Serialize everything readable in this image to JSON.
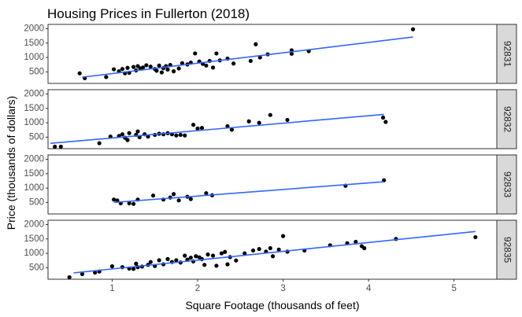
{
  "chart_data": {
    "type": "scatter",
    "title": "Housing Prices in Fullerton (2018)",
    "xlabel": "Square Footage (thousands of feet)",
    "ylabel": "Price (thousands of dollars)",
    "xlim": [
      0.25,
      5.5
    ],
    "ylim": [
      100,
      2150
    ],
    "x_ticks": [
      1,
      2,
      3,
      4,
      5
    ],
    "y_ticks": [
      500,
      1000,
      1500,
      2000
    ],
    "grid": false,
    "trend_line_color": "#3366ff",
    "point_color": "#000000",
    "strip_fill": "#d9d9d9",
    "facets": [
      {
        "label": "92831",
        "trend": {
          "x": [
            0.65,
            4.52
          ],
          "y": [
            315,
            1710
          ]
        },
        "points": [
          {
            "x": 0.62,
            "y": 450
          },
          {
            "x": 0.68,
            "y": 280
          },
          {
            "x": 0.93,
            "y": 320
          },
          {
            "x": 1.02,
            "y": 590
          },
          {
            "x": 1.08,
            "y": 520
          },
          {
            "x": 1.12,
            "y": 600
          },
          {
            "x": 1.15,
            "y": 450
          },
          {
            "x": 1.18,
            "y": 640
          },
          {
            "x": 1.2,
            "y": 470
          },
          {
            "x": 1.25,
            "y": 670
          },
          {
            "x": 1.28,
            "y": 550
          },
          {
            "x": 1.3,
            "y": 700
          },
          {
            "x": 1.33,
            "y": 620
          },
          {
            "x": 1.36,
            "y": 650
          },
          {
            "x": 1.4,
            "y": 730
          },
          {
            "x": 1.45,
            "y": 680
          },
          {
            "x": 1.5,
            "y": 600
          },
          {
            "x": 1.52,
            "y": 540
          },
          {
            "x": 1.55,
            "y": 720
          },
          {
            "x": 1.58,
            "y": 480
          },
          {
            "x": 1.6,
            "y": 630
          },
          {
            "x": 1.63,
            "y": 700
          },
          {
            "x": 1.65,
            "y": 580
          },
          {
            "x": 1.68,
            "y": 740
          },
          {
            "x": 1.72,
            "y": 520
          },
          {
            "x": 1.78,
            "y": 620
          },
          {
            "x": 1.82,
            "y": 800
          },
          {
            "x": 1.88,
            "y": 760
          },
          {
            "x": 1.92,
            "y": 820
          },
          {
            "x": 1.97,
            "y": 1140
          },
          {
            "x": 2.02,
            "y": 860
          },
          {
            "x": 2.06,
            "y": 780
          },
          {
            "x": 2.1,
            "y": 720
          },
          {
            "x": 2.14,
            "y": 880
          },
          {
            "x": 2.18,
            "y": 650
          },
          {
            "x": 2.22,
            "y": 1140
          },
          {
            "x": 2.26,
            "y": 900
          },
          {
            "x": 2.35,
            "y": 960
          },
          {
            "x": 2.42,
            "y": 790
          },
          {
            "x": 2.62,
            "y": 880
          },
          {
            "x": 2.68,
            "y": 1460
          },
          {
            "x": 2.73,
            "y": 1000
          },
          {
            "x": 2.82,
            "y": 1110
          },
          {
            "x": 3.1,
            "y": 1130
          },
          {
            "x": 3.1,
            "y": 1250
          },
          {
            "x": 3.3,
            "y": 1220
          },
          {
            "x": 4.52,
            "y": 1980
          }
        ]
      },
      {
        "label": "92832",
        "trend": {
          "x": [
            0.28,
            4.18
          ],
          "y": [
            285,
            1290
          ]
        },
        "points": [
          {
            "x": 0.33,
            "y": 170
          },
          {
            "x": 0.4,
            "y": 170
          },
          {
            "x": 0.85,
            "y": 290
          },
          {
            "x": 0.98,
            "y": 520
          },
          {
            "x": 1.08,
            "y": 540
          },
          {
            "x": 1.12,
            "y": 600
          },
          {
            "x": 1.15,
            "y": 480
          },
          {
            "x": 1.18,
            "y": 400
          },
          {
            "x": 1.2,
            "y": 640
          },
          {
            "x": 1.28,
            "y": 580
          },
          {
            "x": 1.3,
            "y": 700
          },
          {
            "x": 1.32,
            "y": 500
          },
          {
            "x": 1.38,
            "y": 600
          },
          {
            "x": 1.42,
            "y": 520
          },
          {
            "x": 1.5,
            "y": 580
          },
          {
            "x": 1.55,
            "y": 620
          },
          {
            "x": 1.6,
            "y": 600
          },
          {
            "x": 1.65,
            "y": 640
          },
          {
            "x": 1.7,
            "y": 600
          },
          {
            "x": 1.75,
            "y": 560
          },
          {
            "x": 1.8,
            "y": 580
          },
          {
            "x": 1.85,
            "y": 560
          },
          {
            "x": 1.95,
            "y": 930
          },
          {
            "x": 2.0,
            "y": 800
          },
          {
            "x": 2.05,
            "y": 820
          },
          {
            "x": 2.35,
            "y": 880
          },
          {
            "x": 2.4,
            "y": 760
          },
          {
            "x": 2.6,
            "y": 1050
          },
          {
            "x": 2.72,
            "y": 1000
          },
          {
            "x": 2.85,
            "y": 1270
          },
          {
            "x": 3.05,
            "y": 1100
          },
          {
            "x": 4.17,
            "y": 1180
          },
          {
            "x": 4.2,
            "y": 1030
          }
        ]
      },
      {
        "label": "92833",
        "trend": {
          "x": [
            1.02,
            4.18
          ],
          "y": [
            500,
            1220
          ]
        },
        "points": [
          {
            "x": 1.02,
            "y": 600
          },
          {
            "x": 1.06,
            "y": 570
          },
          {
            "x": 1.1,
            "y": 470
          },
          {
            "x": 1.2,
            "y": 470
          },
          {
            "x": 1.25,
            "y": 450
          },
          {
            "x": 1.3,
            "y": 600
          },
          {
            "x": 1.48,
            "y": 740
          },
          {
            "x": 1.6,
            "y": 600
          },
          {
            "x": 1.68,
            "y": 670
          },
          {
            "x": 1.72,
            "y": 790
          },
          {
            "x": 1.78,
            "y": 570
          },
          {
            "x": 1.88,
            "y": 700
          },
          {
            "x": 1.92,
            "y": 620
          },
          {
            "x": 2.1,
            "y": 820
          },
          {
            "x": 2.17,
            "y": 750
          },
          {
            "x": 3.73,
            "y": 1080
          },
          {
            "x": 4.18,
            "y": 1270
          }
        ]
      },
      {
        "label": "92835",
        "trend": {
          "x": [
            0.55,
            5.25
          ],
          "y": [
            320,
            1760
          ]
        },
        "points": [
          {
            "x": 0.5,
            "y": 170
          },
          {
            "x": 0.65,
            "y": 280
          },
          {
            "x": 0.8,
            "y": 330
          },
          {
            "x": 0.85,
            "y": 370
          },
          {
            "x": 1.0,
            "y": 550
          },
          {
            "x": 1.12,
            "y": 520
          },
          {
            "x": 1.2,
            "y": 470
          },
          {
            "x": 1.25,
            "y": 460
          },
          {
            "x": 1.28,
            "y": 640
          },
          {
            "x": 1.3,
            "y": 520
          },
          {
            "x": 1.35,
            "y": 540
          },
          {
            "x": 1.42,
            "y": 600
          },
          {
            "x": 1.45,
            "y": 700
          },
          {
            "x": 1.5,
            "y": 560
          },
          {
            "x": 1.55,
            "y": 760
          },
          {
            "x": 1.6,
            "y": 620
          },
          {
            "x": 1.65,
            "y": 800
          },
          {
            "x": 1.7,
            "y": 700
          },
          {
            "x": 1.75,
            "y": 760
          },
          {
            "x": 1.8,
            "y": 680
          },
          {
            "x": 1.85,
            "y": 920
          },
          {
            "x": 1.88,
            "y": 780
          },
          {
            "x": 1.92,
            "y": 850
          },
          {
            "x": 1.95,
            "y": 720
          },
          {
            "x": 1.98,
            "y": 900
          },
          {
            "x": 2.02,
            "y": 860
          },
          {
            "x": 2.05,
            "y": 800
          },
          {
            "x": 2.08,
            "y": 600
          },
          {
            "x": 2.12,
            "y": 960
          },
          {
            "x": 2.18,
            "y": 920
          },
          {
            "x": 2.22,
            "y": 570
          },
          {
            "x": 2.28,
            "y": 1000
          },
          {
            "x": 2.32,
            "y": 1050
          },
          {
            "x": 2.35,
            "y": 620
          },
          {
            "x": 2.38,
            "y": 870
          },
          {
            "x": 2.45,
            "y": 750
          },
          {
            "x": 2.55,
            "y": 1000
          },
          {
            "x": 2.65,
            "y": 1100
          },
          {
            "x": 2.72,
            "y": 1150
          },
          {
            "x": 2.8,
            "y": 1060
          },
          {
            "x": 2.85,
            "y": 1180
          },
          {
            "x": 2.88,
            "y": 900
          },
          {
            "x": 2.95,
            "y": 1130
          },
          {
            "x": 3.0,
            "y": 1600
          },
          {
            "x": 3.05,
            "y": 1060
          },
          {
            "x": 3.25,
            "y": 1100
          },
          {
            "x": 3.55,
            "y": 1280
          },
          {
            "x": 3.75,
            "y": 1350
          },
          {
            "x": 3.85,
            "y": 1400
          },
          {
            "x": 3.92,
            "y": 1250
          },
          {
            "x": 3.95,
            "y": 1180
          },
          {
            "x": 4.32,
            "y": 1500
          },
          {
            "x": 5.25,
            "y": 1560
          }
        ]
      }
    ]
  }
}
